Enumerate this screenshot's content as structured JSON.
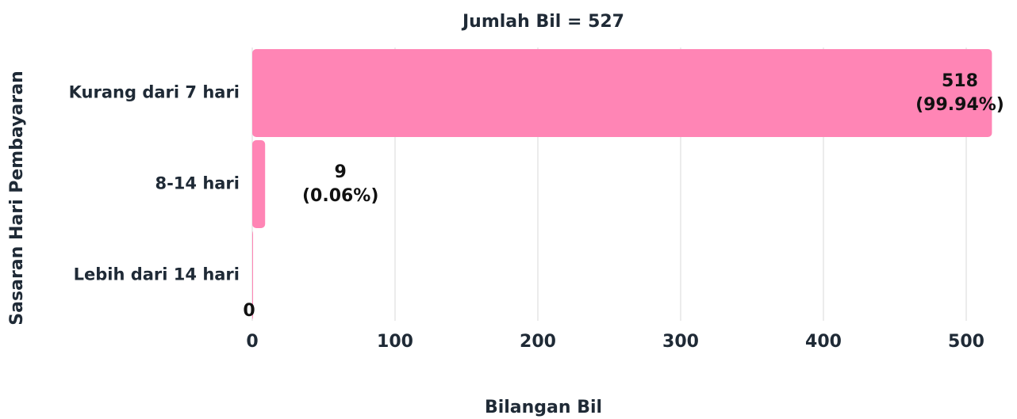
{
  "chart_data": {
    "type": "barh",
    "title": "Jumlah  Bil = 527",
    "xlabel": "Bilangan Bil",
    "ylabel": "Sasaran Hari Pembayaran",
    "categories": [
      "Kurang dari 7 hari",
      "8-14 hari",
      "Lebih dari 14 hari"
    ],
    "values": [
      518,
      9,
      0
    ],
    "value_labels": [
      "518\n(99.94%)",
      "9\n(0.06%)",
      "0"
    ],
    "color": "#ff85b5",
    "xlim": [
      0,
      500
    ],
    "xticks": [
      0,
      100,
      200,
      300,
      400,
      500
    ],
    "grid": true
  }
}
